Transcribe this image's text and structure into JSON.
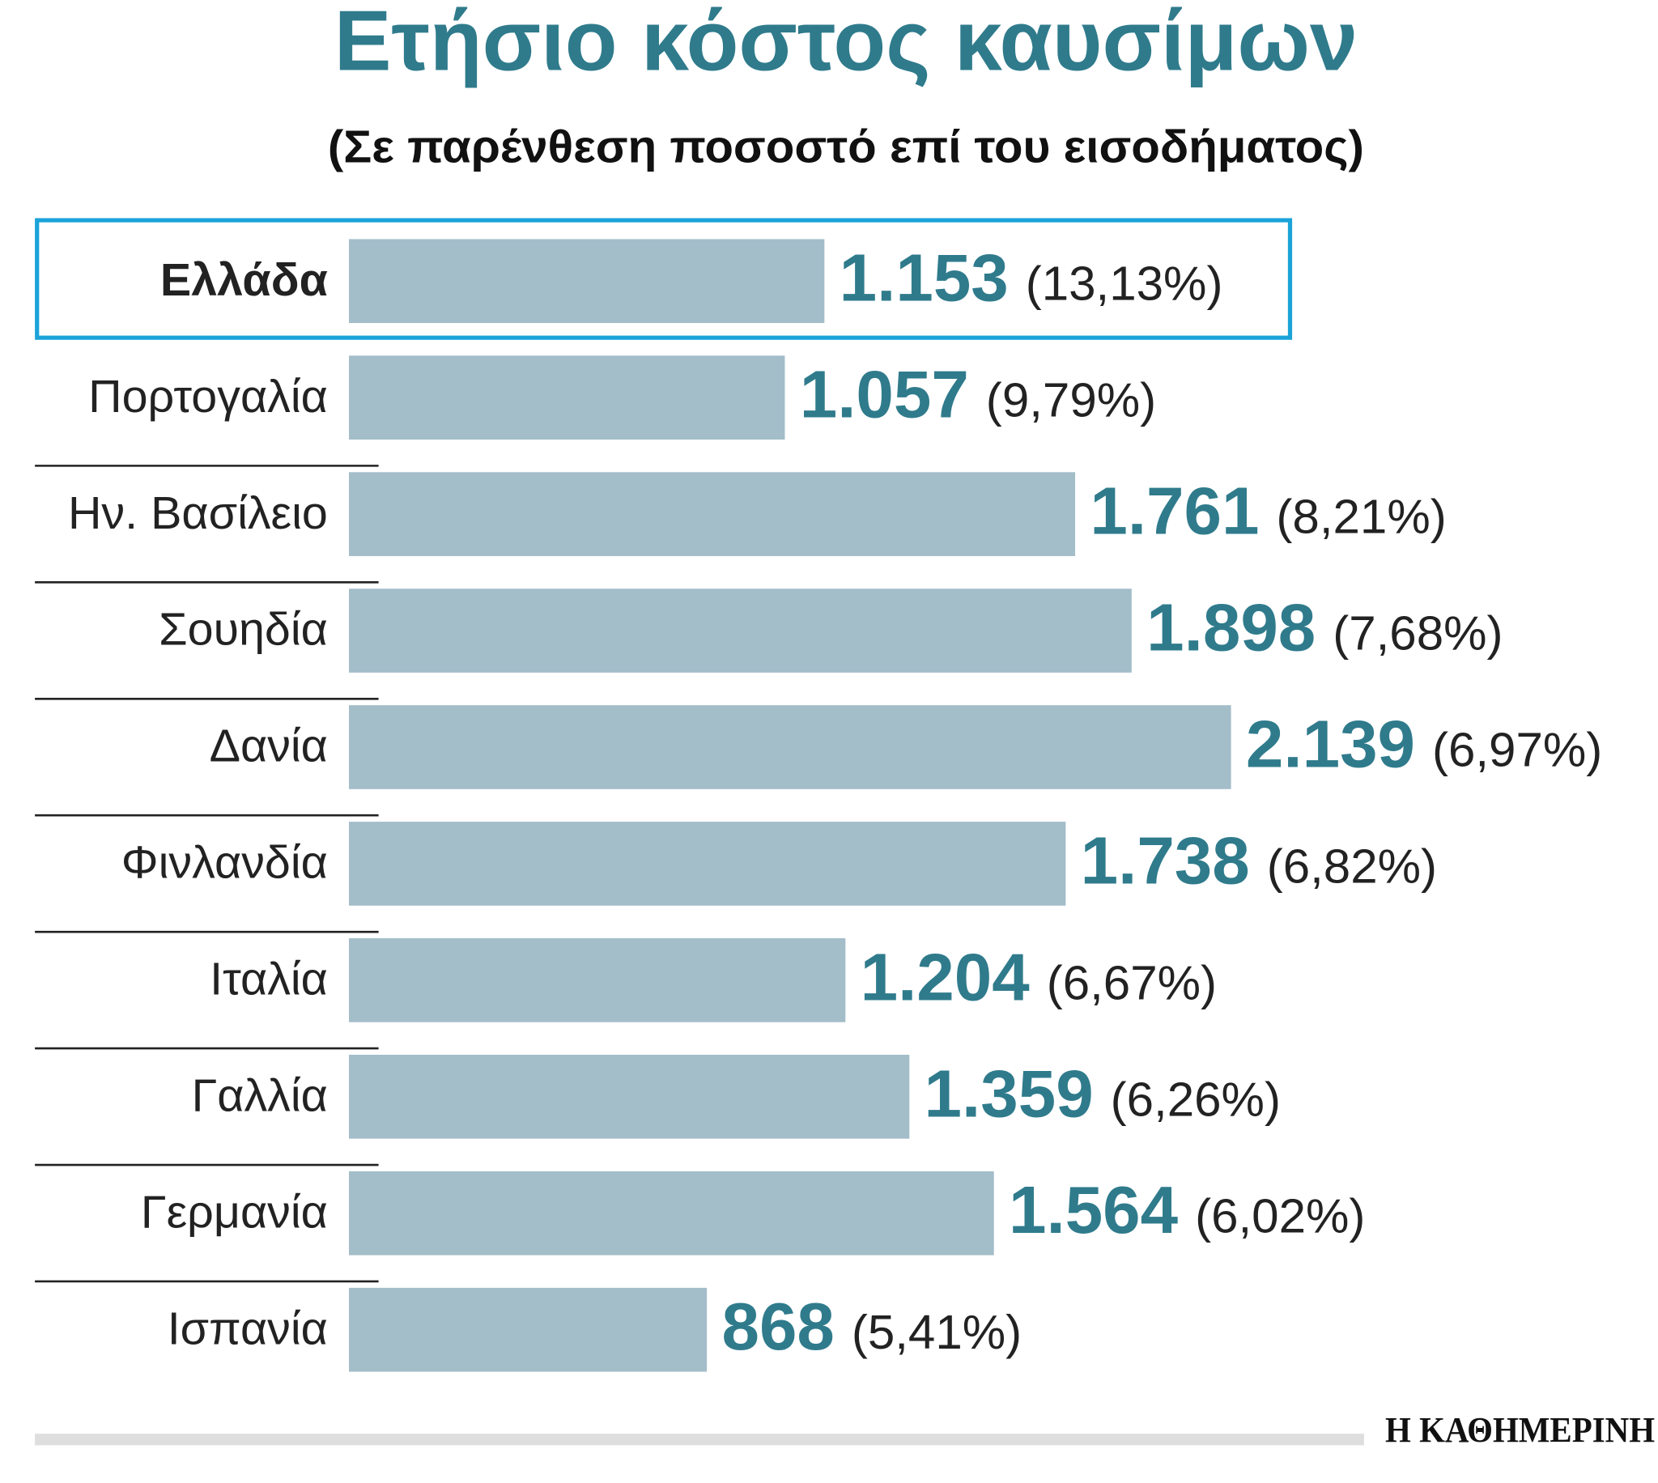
{
  "chart_data": {
    "type": "bar",
    "orientation": "horizontal",
    "title": "Ετήσιο κόστος καυσίμων",
    "subtitle": "(Σε παρένθεση ποσοστό επί του εισοδήματος)",
    "categories": [
      "Ελλάδα",
      "Πορτογαλία",
      "Ην. Βασίλειο",
      "Σουηδία",
      "Δανία",
      "Φινλανδία",
      "Ιταλία",
      "Γαλλία",
      "Γερμανία",
      "Ισπανία"
    ],
    "series": [
      {
        "color": "#a3bdc9",
        "values": [
          1153,
          1057,
          1761,
          1898,
          2139,
          1738,
          1204,
          1359,
          1564,
          868
        ],
        "value_labels": [
          "1.153",
          "1.057",
          "1.761",
          "1.898",
          "2.139",
          "1.738",
          "1.204",
          "1.359",
          "1.564",
          "868"
        ],
        "shares": [
          13.13,
          9.79,
          8.21,
          7.68,
          6.97,
          6.82,
          6.67,
          6.26,
          6.02,
          5.41
        ],
        "share_labels": [
          "(13,13%)",
          "(9,79%)",
          "(8,21%)",
          "(7,68%)",
          "(6,97%)",
          "(6,82%)",
          "(6,67%)",
          "(6,26%)",
          "(6,02%)",
          "(5,41%)"
        ]
      }
    ],
    "xlim": [
      0,
      3000
    ],
    "highlight_index": 0,
    "highlight_color": "#1ba3d9",
    "label_color": "#2f7b8c",
    "source": "Η ΚΑΘΗΜΕΡΙΝΗ"
  }
}
